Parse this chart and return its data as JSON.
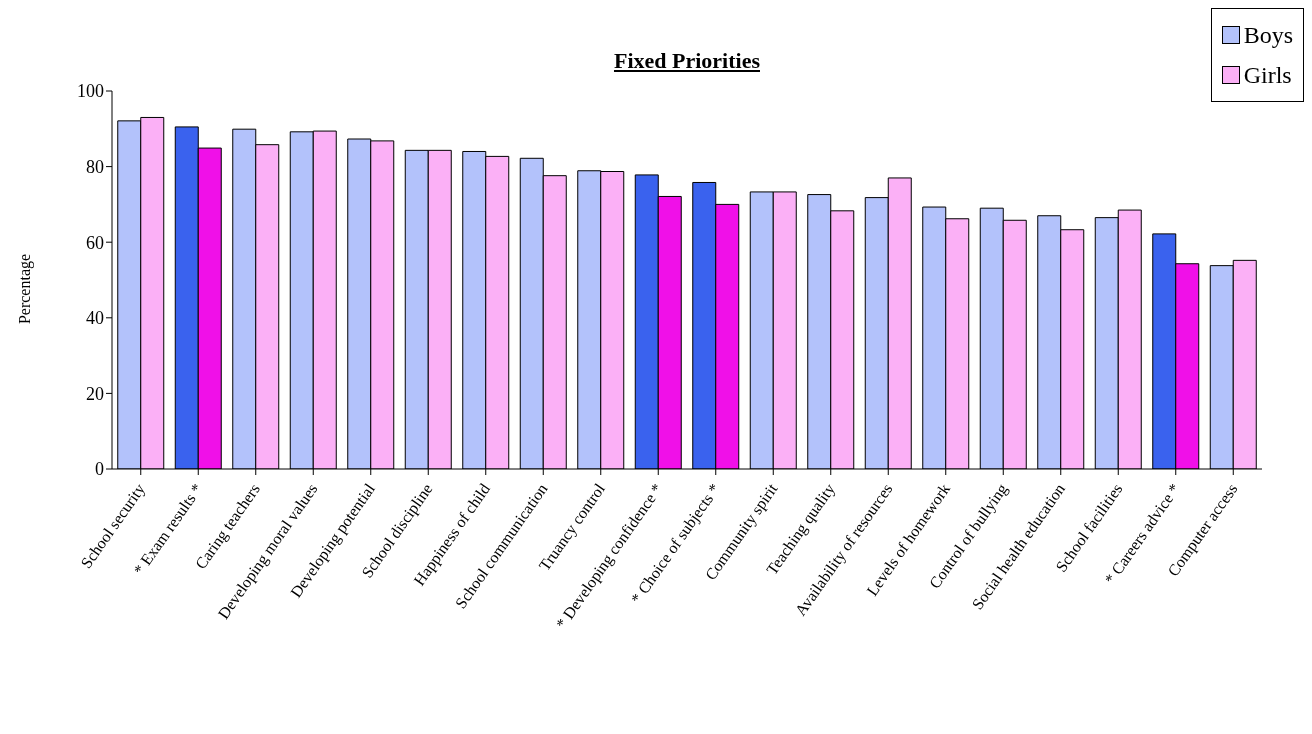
{
  "chart_data": {
    "type": "bar",
    "title": "Fixed Priorities",
    "ylabel": "Percentage",
    "categories": [
      "School security",
      "* Exam results *",
      "Caring teachers",
      "Developing moral values",
      "Developing potential",
      "School discipline",
      "Happiness of child",
      "School communication",
      "Truancy control",
      "* Developing confidence *",
      "* Choice of subjects *",
      "Community spirit",
      "Teaching quality",
      "Availability of resources",
      "Levels of homework",
      "Control of bullying",
      "Social health education",
      "School facilities",
      "* Careers advice *",
      "Computer access"
    ],
    "series": [
      {
        "name": "Boys",
        "color": "#b3c2fb",
        "colors": [
          "#b3c2fb",
          "#3a62ee",
          "#b3c2fb",
          "#b3c2fb",
          "#b3c2fb",
          "#b3c2fb",
          "#b3c2fb",
          "#b3c2fb",
          "#b3c2fb",
          "#3a62ee",
          "#3a62ee",
          "#b3c2fb",
          "#b3c2fb",
          "#b3c2fb",
          "#b3c2fb",
          "#b3c2fb",
          "#b3c2fb",
          "#b3c2fb",
          "#3a62ee",
          "#b3c2fb"
        ],
        "values": [
          92.1,
          90.5,
          89.9,
          89.2,
          87.3,
          84.3,
          84,
          82.2,
          78.9,
          77.8,
          75.8,
          73.3,
          72.6,
          71.8,
          69.3,
          69,
          67,
          66.5,
          62.2,
          53.8
        ]
      },
      {
        "name": "Girls",
        "color": "#fbb0f6",
        "colors": [
          "#fbb0f6",
          "#f010e8",
          "#fbb0f6",
          "#fbb0f6",
          "#fbb0f6",
          "#fbb0f6",
          "#fbb0f6",
          "#fbb0f6",
          "#fbb0f6",
          "#f010e8",
          "#f010e8",
          "#fbb0f6",
          "#fbb0f6",
          "#fbb0f6",
          "#fbb0f6",
          "#fbb0f6",
          "#fbb0f6",
          "#fbb0f6",
          "#f010e8",
          "#fbb0f6"
        ],
        "values": [
          93,
          84.9,
          85.8,
          89.4,
          86.8,
          84.3,
          82.7,
          77.6,
          78.7,
          72.1,
          70,
          73.3,
          68.3,
          77,
          66.2,
          65.8,
          63.3,
          68.5,
          54.3,
          55.2
        ]
      }
    ],
    "ylim": [
      0,
      100
    ],
    "yticks": [
      0,
      20,
      40,
      60,
      80,
      100
    ],
    "legend": "top right"
  }
}
